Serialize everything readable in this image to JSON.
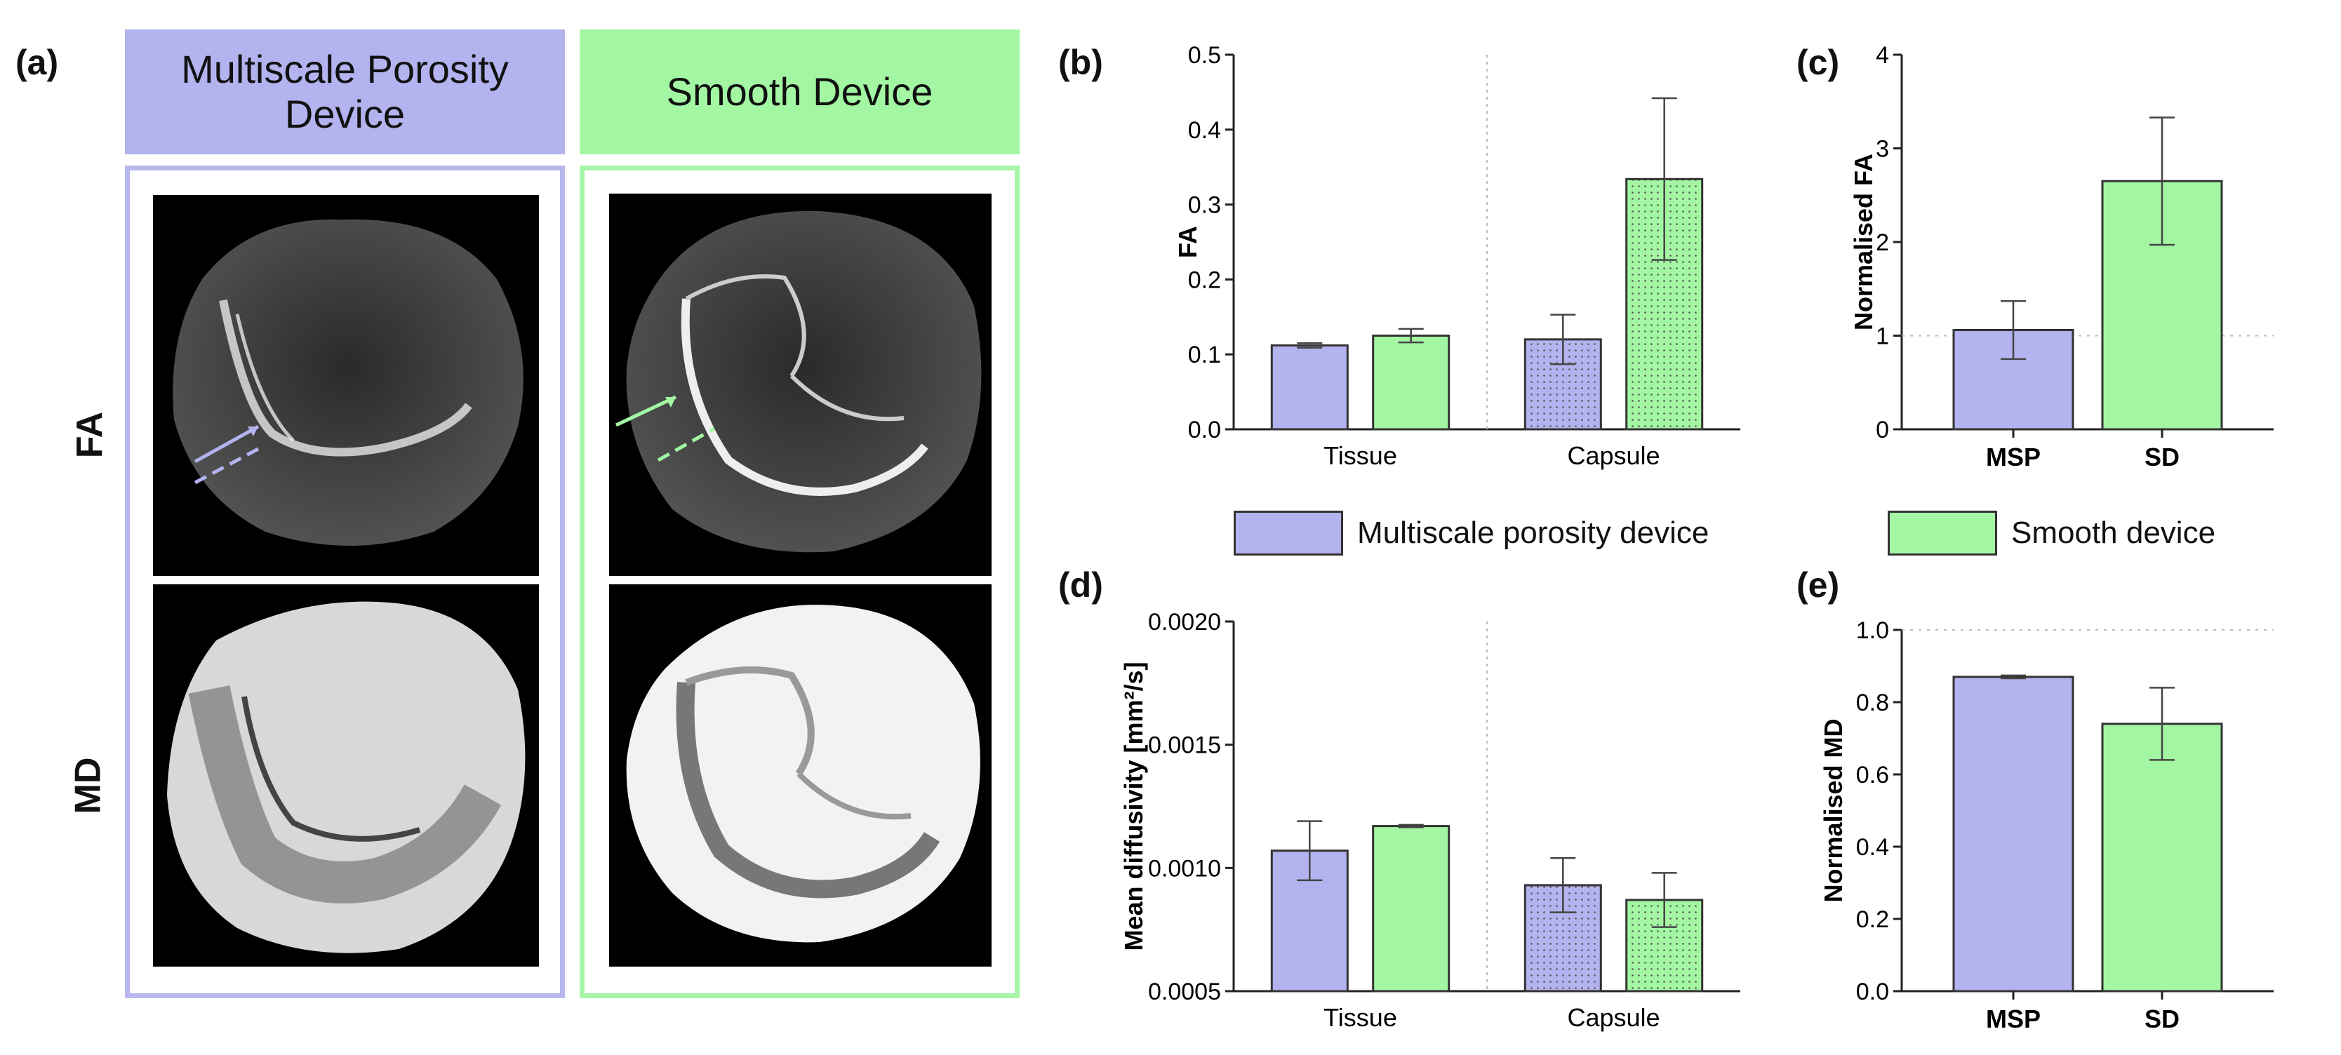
{
  "colors": {
    "msp": "#b3b3ef",
    "sd": "#a3f7a3",
    "msp_frame": "#b8b8ee",
    "sd_frame": "#a8f5a8"
  },
  "panel_a": {
    "label": "(a)",
    "headers": [
      "Multiscale Porosity Device",
      "Smooth Device"
    ],
    "row_labels": [
      "FA",
      "MD"
    ]
  },
  "legend": [
    {
      "label": "Multiscale porosity device",
      "color": "#b3b3ef"
    },
    {
      "label": "Smooth device",
      "color": "#a3f7a3"
    }
  ],
  "chart_data": [
    {
      "id": "b",
      "panel_label": "(b)",
      "type": "bar",
      "categories": [
        "Tissue",
        "Capsule"
      ],
      "ylabel": "FA",
      "ylim": [
        0,
        0.5
      ],
      "yticks": [
        "0.0",
        "0.1",
        "0.2",
        "0.3",
        "0.4",
        "0.5"
      ],
      "series": [
        {
          "name": "Multiscale porosity device",
          "values": [
            0.112,
            0.12
          ],
          "errors": [
            0.003,
            0.033
          ]
        },
        {
          "name": "Smooth device",
          "values": [
            0.125,
            0.334
          ],
          "errors": [
            0.009,
            0.108
          ]
        }
      ]
    },
    {
      "id": "c",
      "panel_label": "(c)",
      "type": "bar",
      "categories": [
        "MSP",
        "SD"
      ],
      "ylabel": "Normalised  FA",
      "ylim": [
        0,
        4
      ],
      "yticks": [
        "0",
        "1",
        "2",
        "3",
        "4"
      ],
      "reference_line": 1,
      "values": [
        1.06,
        2.65
      ],
      "errors": [
        0.31,
        0.68
      ]
    },
    {
      "id": "d",
      "panel_label": "(d)",
      "type": "bar",
      "categories": [
        "Tissue",
        "Capsule"
      ],
      "ylabel": "Mean diffusivity [mm²/s]",
      "ylim": [
        0.0005,
        0.002
      ],
      "yticks": [
        "0.0005",
        "0.0010",
        "0.0015",
        "0.0020"
      ],
      "series": [
        {
          "name": "Multiscale porosity device",
          "values": [
            0.00107,
            0.00093
          ],
          "errors": [
            0.00012,
            0.00011
          ]
        },
        {
          "name": "Smooth device",
          "values": [
            0.00117,
            0.00087
          ],
          "errors": [
            5e-06,
            0.00011
          ]
        }
      ]
    },
    {
      "id": "e",
      "panel_label": "(e)",
      "type": "bar",
      "categories": [
        "MSP",
        "SD"
      ],
      "ylabel": "Normalised MD",
      "ylim": [
        0,
        1.0
      ],
      "yticks": [
        "0.0",
        "0.2",
        "0.4",
        "0.6",
        "0.8",
        "1.0"
      ],
      "reference_line": 1.0,
      "values": [
        0.87,
        0.74
      ],
      "errors": [
        0.004,
        0.1
      ]
    }
  ]
}
